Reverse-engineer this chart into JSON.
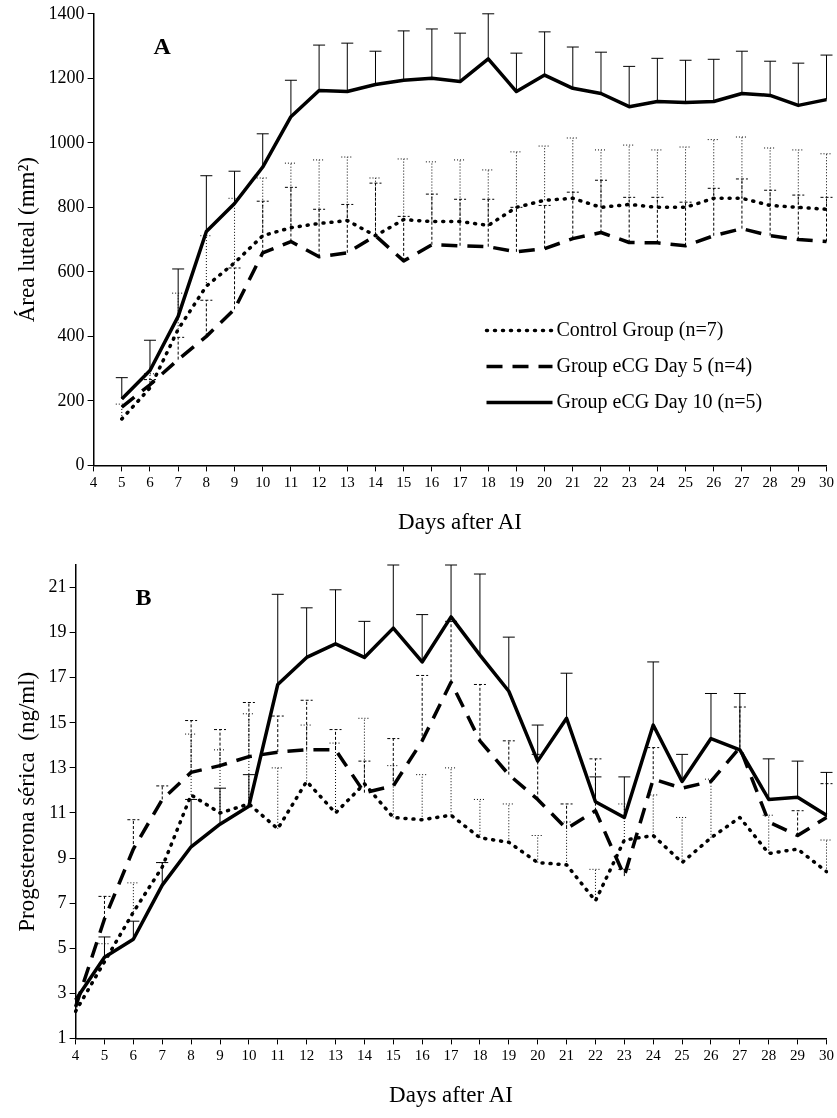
{
  "chart_data": [
    {
      "type": "line",
      "title": "A",
      "xlabel": "Days after AI",
      "ylabel": "Área luteal (mm²)",
      "categories": [
        "4",
        "5",
        "6",
        "7",
        "8",
        "9",
        "10",
        "11",
        "12",
        "13",
        "14",
        "15",
        "16",
        "17",
        "18",
        "19",
        "20",
        "21",
        "22",
        "23",
        "24",
        "25",
        "26",
        "27",
        "28",
        "29",
        "30"
      ],
      "ylim": [
        0,
        1400
      ],
      "yticks": [
        0,
        200,
        400,
        600,
        800,
        1000,
        1200,
        1400
      ],
      "grid": false,
      "legend": "bottom right",
      "marker": "none",
      "series": [
        {
          "name": "Control Group (n=7)",
          "color": "#000000",
          "line_style": "dotted",
          "values": [
            null,
            144,
            240,
            422,
            556,
            628,
            712,
            737,
            750,
            759,
            712,
            762,
            756,
            756,
            744,
            800,
            822,
            828,
            800,
            809,
            800,
            800,
            828,
            828,
            806,
            800,
            794
          ],
          "errors": [
            null,
            [
              144,
              190
            ],
            [
              240,
              284
            ],
            [
              422,
              534
            ],
            [
              556,
              712
            ],
            [
              628,
              828
            ],
            [
              712,
              891
            ],
            [
              737,
              937
            ],
            [
              750,
              947
            ],
            [
              759,
              956
            ],
            [
              712,
              891
            ],
            [
              762,
              950
            ],
            [
              756,
              941
            ],
            [
              756,
              947
            ],
            [
              744,
              916
            ],
            [
              800,
              972
            ],
            [
              822,
              990
            ],
            [
              828,
              1015
            ],
            [
              800,
              978
            ],
            [
              809,
              993
            ],
            [
              800,
              978
            ],
            [
              800,
              987
            ],
            [
              828,
              1010
            ],
            [
              828,
              1018
            ],
            [
              806,
              984
            ],
            [
              800,
              978
            ],
            [
              794,
              966
            ]
          ]
        },
        {
          "name": "Group eCG Day 5 (n=4)",
          "color": "#000000",
          "line_style": "dashed",
          "values": [
            null,
            181,
            250,
            328,
            400,
            484,
            659,
            694,
            647,
            659,
            712,
            634,
            684,
            681,
            678,
            662,
            672,
            703,
            722,
            691,
            690,
            681,
            712,
            734,
            712,
            700,
            694
          ],
          "errors": [
            null,
            null,
            [
              250,
              266
            ],
            [
              328,
              397
            ],
            [
              400,
              512
            ],
            [
              484,
              612
            ],
            [
              659,
              819
            ],
            [
              694,
              862
            ],
            [
              647,
              794
            ],
            [
              659,
              809
            ],
            [
              712,
              875
            ],
            [
              634,
              772
            ],
            [
              684,
              841
            ],
            [
              681,
              825
            ],
            [
              678,
              825
            ],
            [
              662,
              800
            ],
            [
              672,
              806
            ],
            [
              703,
              847
            ],
            [
              722,
              884
            ],
            [
              691,
              831
            ],
            [
              690,
              831
            ],
            [
              681,
              816
            ],
            [
              712,
              859
            ],
            [
              734,
              888
            ],
            [
              712,
              853
            ],
            [
              700,
              838
            ],
            [
              694,
              831
            ]
          ]
        },
        {
          "name": "Group eCG Day 10 (n=5)",
          "color": "#000000",
          "line_style": "solid",
          "values": [
            null,
            206,
            294,
            462,
            725,
            812,
            925,
            1081,
            1162,
            1159,
            1181,
            1194,
            1200,
            1190,
            1260,
            1159,
            1210,
            1169,
            1153,
            1112,
            1128,
            1125,
            1128,
            1153,
            1147,
            1116,
            1134
          ],
          "errors": [
            null,
            [
              206,
              272
            ],
            [
              294,
              388
            ],
            [
              462,
              609
            ],
            [
              725,
              898
            ],
            [
              812,
              912
            ],
            [
              925,
              1028
            ],
            [
              1081,
              1194
            ],
            [
              1162,
              1303
            ],
            [
              1159,
              1309
            ],
            [
              1181,
              1284
            ],
            [
              1194,
              1347
            ],
            [
              1200,
              1353
            ],
            [
              1190,
              1340
            ],
            [
              1260,
              1400
            ],
            [
              1159,
              1278
            ],
            [
              1210,
              1344
            ],
            [
              1169,
              1297
            ],
            [
              1153,
              1281
            ],
            [
              1112,
              1237
            ],
            [
              1128,
              1262
            ],
            [
              1125,
              1256
            ],
            [
              1128,
              1259
            ],
            [
              1153,
              1284
            ],
            [
              1147,
              1253
            ],
            [
              1116,
              1247
            ],
            [
              1134,
              1272
            ]
          ]
        }
      ]
    },
    {
      "type": "line",
      "title": "B",
      "xlabel": "Days after AI",
      "ylabel": "Progesterona sérica  (ng/ml)",
      "categories": [
        "4",
        "5",
        "6",
        "7",
        "8",
        "9",
        "10",
        "11",
        "12",
        "13",
        "14",
        "15",
        "16",
        "17",
        "18",
        "19",
        "20",
        "21",
        "22",
        "23",
        "24",
        "25",
        "26",
        "27",
        "28",
        "29",
        "30"
      ],
      "ylim": [
        1,
        22
      ],
      "yticks": [
        1,
        3,
        5,
        7,
        9,
        11,
        13,
        15,
        17,
        19,
        21
      ],
      "grid": false,
      "marker": "none",
      "series": [
        {
          "color": "#000000",
          "line_style": "dotted",
          "values": [
            2.2,
            4.4,
            6.6,
            8.6,
            11.8,
            11.0,
            11.4,
            10.3,
            12.4,
            11.0,
            12.3,
            10.8,
            10.7,
            10.9,
            9.9,
            9.7,
            8.8,
            8.7,
            7.1,
            9.8,
            10.0,
            8.8,
            9.9,
            10.8,
            9.2,
            9.4,
            8.4
          ],
          "errors": [
            null,
            [
              4.4,
              5.2
            ],
            [
              6.6,
              7.9
            ],
            [
              8.6,
              8.8
            ],
            [
              11.8,
              14.5
            ],
            [
              11.0,
              13.8
            ],
            [
              11.4,
              15.4
            ],
            [
              10.3,
              13.0
            ],
            [
              12.4,
              14.9
            ],
            [
              11.0,
              14.1
            ],
            [
              12.3,
              15.2
            ],
            [
              10.8,
              13.1
            ],
            [
              10.7,
              12.7
            ],
            [
              10.9,
              13.0
            ],
            [
              9.9,
              11.6
            ],
            [
              9.7,
              11.4
            ],
            [
              8.8,
              10.0
            ],
            [
              8.7,
              10.6
            ],
            [
              7.1,
              8.5
            ],
            [
              9.8,
              11.4
            ],
            [
              10.0,
              11.8
            ],
            [
              8.8,
              10.8
            ],
            [
              9.9,
              12.5
            ],
            null,
            [
              9.2,
              10.9
            ],
            null,
            [
              8.4,
              9.8
            ]
          ]
        },
        {
          "color": "#000000",
          "line_style": "dashed",
          "values": [
            2.4,
            6.3,
            9.4,
            11.6,
            12.8,
            13.1,
            13.5,
            13.7,
            13.8,
            13.8,
            11.9,
            12.2,
            14.2,
            16.8,
            14.2,
            12.7,
            11.6,
            10.3,
            11.1,
            8.2,
            12.5,
            12.1,
            12.4,
            13.9,
            10.6,
            10.0,
            10.8
          ],
          "errors": [
            null,
            [
              6.3,
              7.3
            ],
            [
              9.4,
              10.7
            ],
            [
              11.6,
              12.2
            ],
            [
              12.8,
              15.1
            ],
            [
              13.1,
              14.7
            ],
            [
              13.5,
              15.9
            ],
            [
              13.7,
              15.3
            ],
            [
              13.8,
              16.0
            ],
            [
              13.8,
              14.7
            ],
            [
              11.9,
              13.3
            ],
            [
              12.2,
              14.3
            ],
            [
              14.2,
              17.1
            ],
            [
              16.8,
              19.5
            ],
            [
              14.2,
              16.7
            ],
            [
              12.7,
              14.2
            ],
            [
              11.6,
              13.6
            ],
            [
              10.3,
              11.4
            ],
            [
              11.1,
              13.4
            ],
            [
              8.2,
              8.5
            ],
            [
              12.5,
              13.9
            ],
            null,
            null,
            [
              13.9,
              15.7
            ],
            null,
            [
              10.0,
              11.1
            ],
            [
              10.8,
              12.3
            ]
          ]
        },
        {
          "color": "#000000",
          "line_style": "solid",
          "values": [
            2.7,
            4.6,
            5.4,
            7.8,
            9.5,
            10.5,
            11.3,
            16.7,
            17.9,
            18.5,
            17.9,
            19.2,
            17.7,
            19.7,
            18.0,
            16.4,
            13.3,
            15.2,
            11.5,
            10.8,
            14.9,
            12.4,
            14.3,
            13.8,
            11.6,
            11.7,
            10.9
          ],
          "errors": [
            null,
            [
              4.6,
              5.5
            ],
            [
              5.4,
              6.2
            ],
            [
              7.8,
              8.8
            ],
            [
              9.5,
              11.6
            ],
            [
              10.5,
              12.1
            ],
            [
              11.3,
              12.7
            ],
            [
              16.7,
              20.7
            ],
            [
              17.9,
              20.1
            ],
            [
              18.5,
              20.9
            ],
            [
              17.9,
              19.5
            ],
            [
              19.2,
              22
            ],
            [
              17.7,
              19.8
            ],
            [
              19.7,
              22
            ],
            [
              18.0,
              21.6
            ],
            [
              16.4,
              18.8
            ],
            [
              13.3,
              14.9
            ],
            [
              15.2,
              17.2
            ],
            [
              11.5,
              12.6
            ],
            [
              10.8,
              12.6
            ],
            [
              14.9,
              17.7
            ],
            [
              12.4,
              13.6
            ],
            [
              14.3,
              16.3
            ],
            [
              13.8,
              16.3
            ],
            [
              11.6,
              13.4
            ],
            [
              11.7,
              13.3
            ],
            [
              10.9,
              12.8
            ]
          ]
        }
      ]
    }
  ]
}
